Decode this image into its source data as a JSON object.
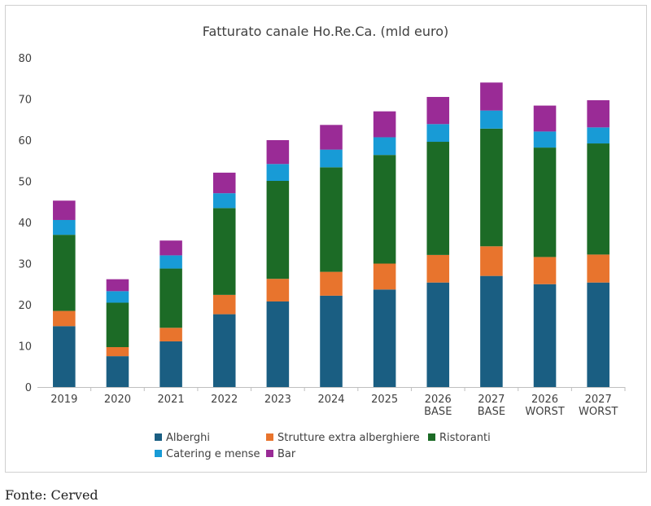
{
  "chart_data": {
    "type": "bar",
    "stacked": true,
    "title": "Fatturato canale Ho.Re.Ca. (mld euro)",
    "xlabel": "",
    "ylabel": "",
    "ylim": [
      0,
      80
    ],
    "yticks": [
      0,
      10,
      20,
      30,
      40,
      50,
      60,
      70,
      80
    ],
    "categories": [
      [
        "2019"
      ],
      [
        "2020"
      ],
      [
        "2021"
      ],
      [
        "2022"
      ],
      [
        "2023"
      ],
      [
        "2024"
      ],
      [
        "2025"
      ],
      [
        "2026",
        "BASE"
      ],
      [
        "2027",
        "BASE"
      ],
      [
        "2026",
        "WORST"
      ],
      [
        "2027",
        "WORST"
      ]
    ],
    "series": [
      {
        "name": "Alberghi",
        "color": "#1a5e82",
        "values": [
          14.8,
          7.5,
          11.1,
          17.7,
          20.8,
          22.2,
          23.7,
          25.4,
          27.0,
          25.0,
          25.4
        ]
      },
      {
        "name": "Strutture extra alberghiere",
        "color": "#e8742d",
        "values": [
          3.7,
          2.2,
          3.3,
          4.7,
          5.5,
          5.8,
          6.3,
          6.7,
          7.2,
          6.6,
          6.8
        ]
      },
      {
        "name": "Ristoranti",
        "color": "#1c6b26",
        "values": [
          18.5,
          10.8,
          14.4,
          21.1,
          23.8,
          25.4,
          26.4,
          27.5,
          28.6,
          26.6,
          27.0
        ]
      },
      {
        "name": "Catering e mense",
        "color": "#189bd6",
        "values": [
          3.6,
          2.8,
          3.2,
          3.6,
          4.1,
          4.3,
          4.3,
          4.3,
          4.4,
          3.9,
          3.9
        ]
      },
      {
        "name": "Bar",
        "color": "#9a2b96",
        "values": [
          4.7,
          2.9,
          3.6,
          5.0,
          5.8,
          6.0,
          6.3,
          6.6,
          6.8,
          6.3,
          6.6
        ]
      }
    ],
    "legend": "bottom",
    "grid": false
  },
  "source": "Fonte: Cerved"
}
